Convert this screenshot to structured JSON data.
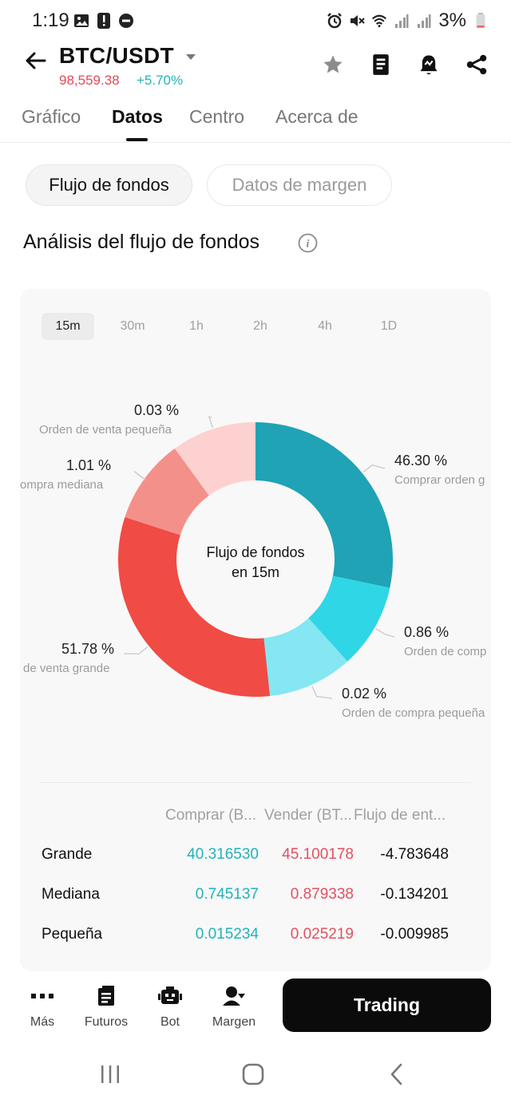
{
  "status_bar": {
    "time": "1:19",
    "battery": "3%",
    "icons_left": [
      "image-icon",
      "alert-icon",
      "dnd-icon"
    ],
    "icons_right": [
      "alarm-icon",
      "mute-icon",
      "wifi-icon",
      "signal-icon",
      "signal-icon",
      "battery-icon"
    ]
  },
  "header": {
    "pair": "BTC/USDT",
    "price": "98,559.38",
    "change": "+5.70%",
    "price_color": "#e2495b",
    "change_color": "#22b5b9",
    "icons": [
      "star-icon",
      "book-icon",
      "alert-bell-icon",
      "share-icon"
    ]
  },
  "tabs": [
    {
      "label": "Gráfico",
      "active": false
    },
    {
      "label": "Datos",
      "active": true
    },
    {
      "label": "Centro",
      "active": false
    },
    {
      "label": "Acerca de",
      "active": false
    }
  ],
  "segments": {
    "active": "Flujo de fondos",
    "inactive": "Datos de margen"
  },
  "section_title": "Análisis del flujo de fondos",
  "timeframes": [
    {
      "label": "15m",
      "active": true
    },
    {
      "label": "30m",
      "active": false
    },
    {
      "label": "1h",
      "active": false
    },
    {
      "label": "2h",
      "active": false
    },
    {
      "label": "4h",
      "active": false
    },
    {
      "label": "1D",
      "active": false
    }
  ],
  "chart_center": {
    "line1": "Flujo de fondos",
    "line2": "en 15m"
  },
  "chart_data": {
    "type": "pie",
    "title": "Flujo de fondos en 15m",
    "slices": [
      {
        "label": "Comprar orden g",
        "pct_label": "46.30 %",
        "value": 46.3,
        "color": "#1fa3b5"
      },
      {
        "label": "Orden de comp",
        "pct_label": "0.86 %",
        "value": 0.86,
        "color": "#2fd6e6"
      },
      {
        "label": "Orden de compra pequeña",
        "pct_label": "0.02 %",
        "value": 0.02,
        "color": "#84e7f1"
      },
      {
        "label": "de venta grande",
        "pct_label": "51.78 %",
        "value": 51.78,
        "color": "#f04b45"
      },
      {
        "label": "ompra mediana",
        "pct_label": "1.01 %",
        "value": 1.01,
        "color": "#f4908a"
      },
      {
        "label": "Orden de venta pequeña",
        "pct_label": "0.03 %",
        "value": 0.03,
        "color": "#fdd1cf"
      }
    ]
  },
  "table": {
    "headers": [
      "Comprar (B...",
      "Vender (BT...",
      "Flujo de ent..."
    ],
    "rows": [
      {
        "label": "Grande",
        "buy": "40.316530",
        "sell": "45.100178",
        "net": "-4.783648"
      },
      {
        "label": "Mediana",
        "buy": "0.745137",
        "sell": "0.879338",
        "net": "-0.134201"
      },
      {
        "label": "Pequeña",
        "buy": "0.015234",
        "sell": "0.025219",
        "net": "-0.009985"
      }
    ]
  },
  "bottom_nav": {
    "items": [
      {
        "label": "Más",
        "icon": "more-icon"
      },
      {
        "label": "Futuros",
        "icon": "futures-icon"
      },
      {
        "label": "Bot",
        "icon": "bot-icon"
      },
      {
        "label": "Margen",
        "icon": "margin-icon"
      }
    ],
    "trade_label": "Trading"
  },
  "system_nav": [
    "recents-icon",
    "home-icon",
    "back-nav-icon"
  ]
}
